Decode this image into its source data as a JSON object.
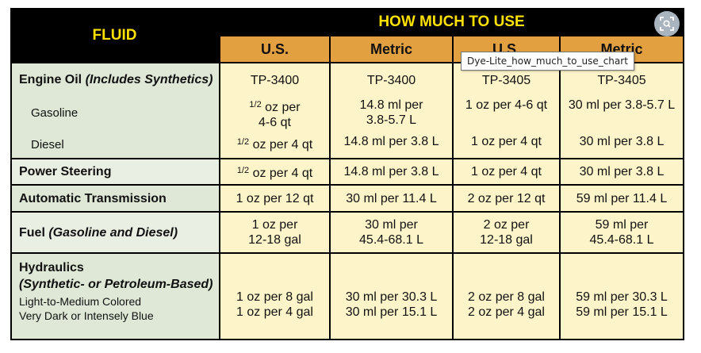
{
  "header": {
    "fluid_label": "FLUID",
    "how_much_label": "HOW MUCH TO USE",
    "columns": [
      "U.S.",
      "Metric",
      "U.S.",
      "Metric"
    ]
  },
  "tooltip": "Dye-Lite_how_much_to_use_chart",
  "lens_button": {
    "icon": "visual-search-icon"
  },
  "rows": {
    "engine_oil": {
      "name": "Engine Oil",
      "qualifier": "(Includes Synthetics)",
      "values": [
        "TP-3400",
        "TP-3400",
        "TP-3405",
        "TP-3405"
      ]
    },
    "gasoline": {
      "name": "Gasoline",
      "us1_line1": "oz  per",
      "us1_frac": "1/2",
      "us1_line2": "4-6 qt",
      "metric1_line1": "14.8 ml per",
      "metric1_line2": "3.8-5.7 L",
      "us2": "1 oz per 4-6 qt",
      "metric2": "30 ml per 3.8-5.7 L"
    },
    "diesel": {
      "name": "Diesel",
      "us1_frac": "1/2",
      "us1_rest": "oz  per 4 qt",
      "metric1": "14.8 ml per 3.8 L",
      "us2": "1 oz per 4 qt",
      "metric2": "30 ml per 3.8 L"
    },
    "power_steering": {
      "name": "Power Steering",
      "us1_frac": "1/2",
      "us1_rest": "oz  per 4 qt",
      "metric1": "14.8 ml per 3.8 L",
      "us2": "1 oz per 4 qt",
      "metric2": "30 ml per 3.8 L"
    },
    "automatic_transmission": {
      "name": "Automatic Transmission",
      "values": [
        "1 oz  per 12 qt",
        "30 ml per 11.4 L",
        "2 oz per 12 qt",
        "59 ml per 11.4 L"
      ]
    },
    "fuel": {
      "name": "Fuel",
      "qualifier": "(Gasoline and Diesel)",
      "us1_line1": "1 oz  per",
      "us1_line2": "12-18 gal",
      "metric1_line1": "30 ml per",
      "metric1_line2": "45.4-68.1 L",
      "us2_line1": "2 oz per",
      "us2_line2": "12-18 gal",
      "metric2_line1": "59 ml per",
      "metric2_line2": "45.4-68.1 L"
    },
    "hydraulics": {
      "name": "Hydraulics",
      "qualifier": "(Synthetic- or Petroleum-Based)",
      "sub1": "Light-to-Medium Colored",
      "sub2": "Very Dark or Intensely Blue",
      "us1_line1": "1 oz  per 8 gal",
      "us1_line2": "1 oz  per 4 gal",
      "metric1_line1": "30 ml per 30.3 L",
      "metric1_line2": "30 ml per 15.1 L",
      "us2_line1": "2 oz per 8 gal",
      "us2_line2": "2 oz per 4 gal",
      "metric2_line1": "59 ml per 30.3 L",
      "metric2_line2": "59 ml per 15.1 L"
    }
  },
  "colors": {
    "header_bg": "#000000",
    "header_text": "#ffe100",
    "subheader_bg": "#e2a040",
    "fluid_col_bg": "#dfe8d6",
    "value_bg": "#fdf5c9"
  }
}
